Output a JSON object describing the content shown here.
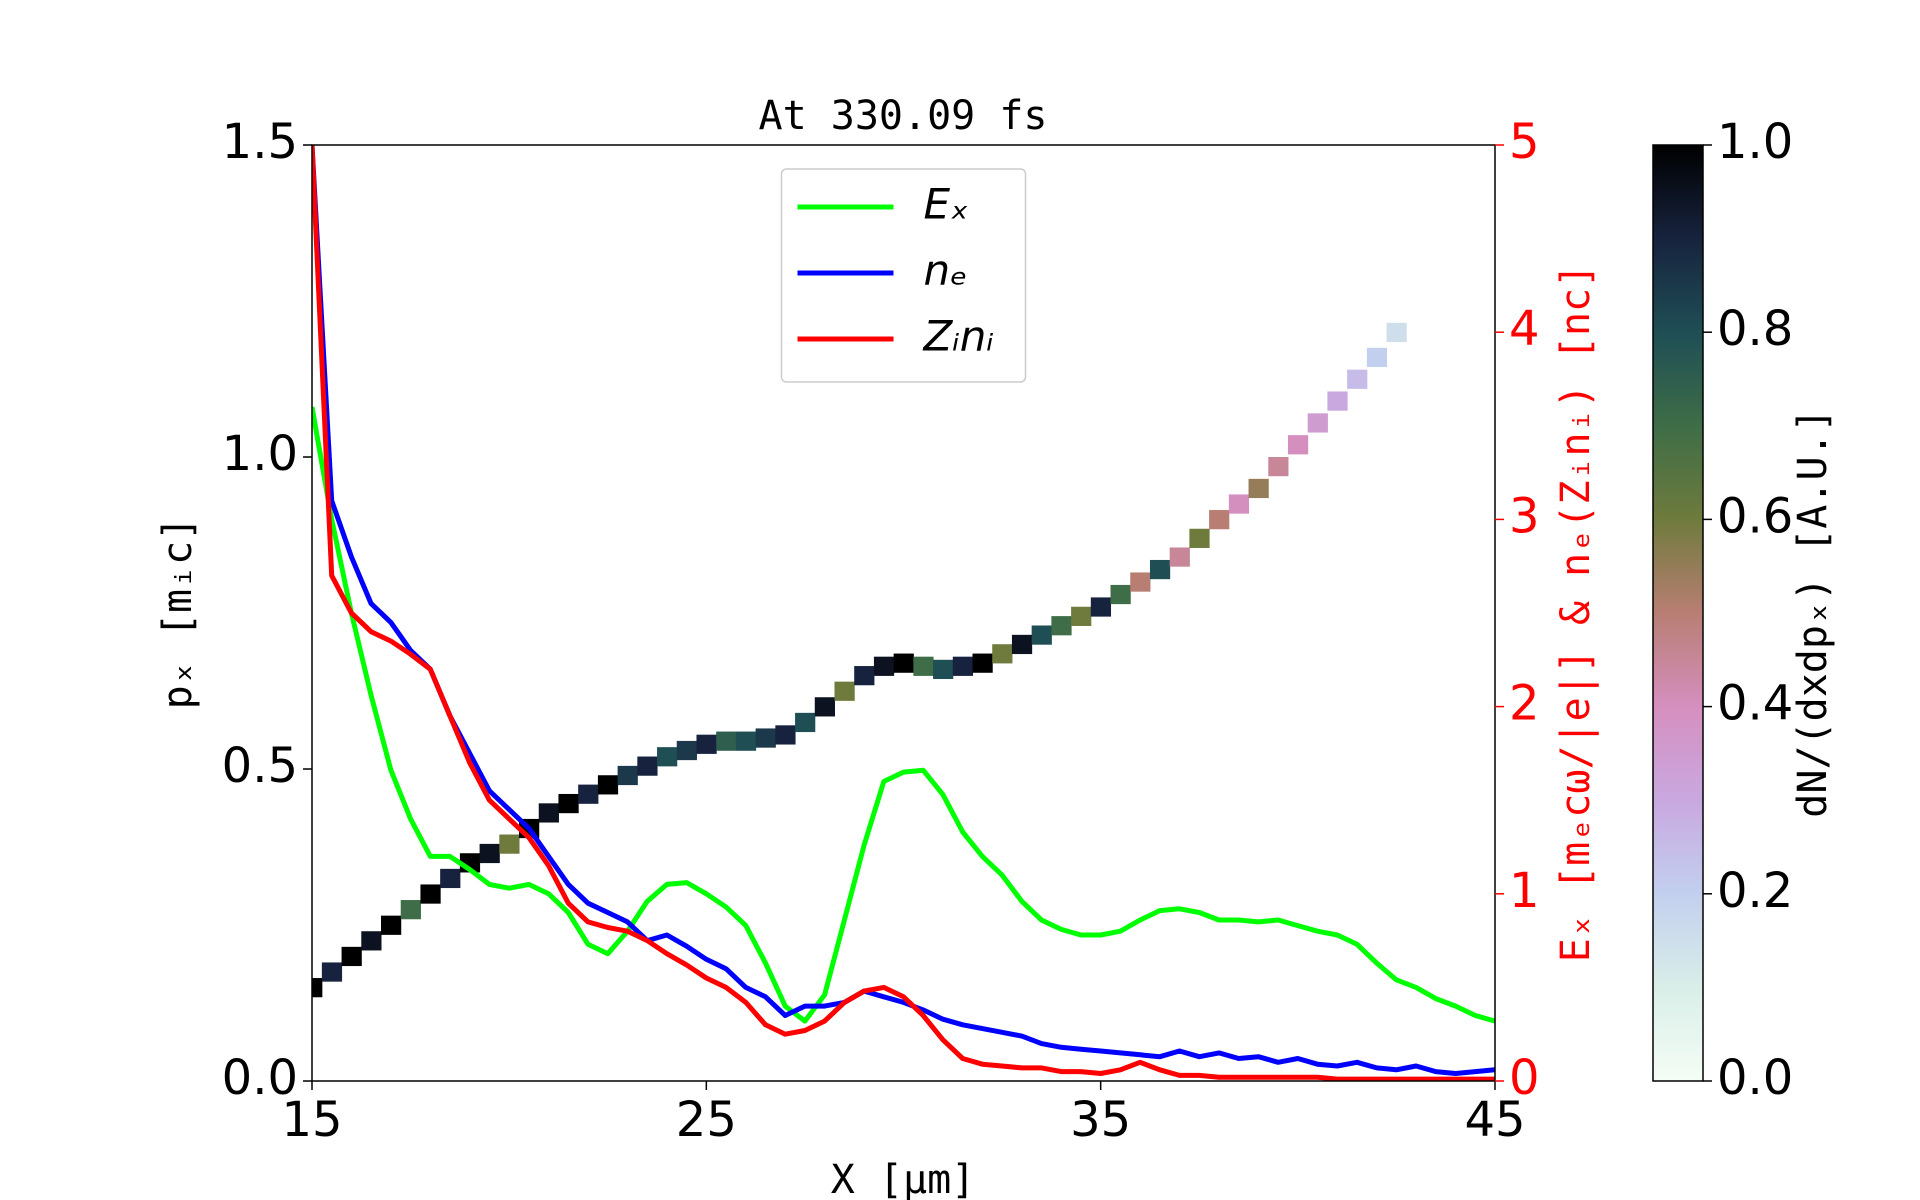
{
  "chart_data": {
    "type": "line",
    "title": "At 330.09 fs",
    "xlabel": "X [μm]",
    "ylabel": "pₓ [mᵢc]",
    "y2label": "Eₓ [mₑcω/|e|] & nₑ(Zᵢnᵢ) [nc]",
    "xlim": [
      15,
      45
    ],
    "xticks": [
      15,
      25,
      35,
      45
    ],
    "ylim": [
      0,
      1.5
    ],
    "yticks": [
      {
        "value": 0,
        "label": "0.0"
      },
      {
        "value": 0.5,
        "label": "0.5"
      },
      {
        "value": 1.0,
        "label": "1.0"
      },
      {
        "value": 1.5,
        "label": "1.5"
      }
    ],
    "y2lim": [
      0,
      5
    ],
    "y2ticks": [
      0,
      1,
      2,
      3,
      4,
      5
    ],
    "y2color": "#ff0000",
    "legend": "upper center",
    "x": [
      15,
      15.5,
      16,
      16.5,
      17,
      17.5,
      18,
      18.5,
      19,
      19.5,
      20,
      20.5,
      21,
      21.5,
      22,
      22.5,
      23,
      23.5,
      24,
      24.5,
      25,
      25.5,
      26,
      26.5,
      27,
      27.5,
      28,
      28.5,
      29,
      29.5,
      30,
      30.5,
      31,
      31.5,
      32,
      32.5,
      33,
      33.5,
      34,
      34.5,
      35,
      35.5,
      36,
      36.5,
      37,
      37.5,
      38,
      38.5,
      39,
      39.5,
      40,
      40.5,
      41,
      41.5,
      42,
      42.5,
      43,
      43.5,
      44,
      44.5,
      45
    ],
    "series": [
      {
        "name": "Eₓ",
        "color": "#00ff00",
        "axis": "y2",
        "values": [
          3.6,
          3.0,
          2.5,
          2.06,
          1.66,
          1.4,
          1.2,
          1.2,
          1.13,
          1.05,
          1.03,
          1.05,
          1.0,
          0.9,
          0.73,
          0.68,
          0.8,
          0.96,
          1.05,
          1.06,
          1.0,
          0.93,
          0.83,
          0.63,
          0.4,
          0.32,
          0.46,
          0.86,
          1.26,
          1.6,
          1.65,
          1.66,
          1.53,
          1.33,
          1.2,
          1.1,
          0.96,
          0.86,
          0.81,
          0.78,
          0.78,
          0.8,
          0.86,
          0.91,
          0.92,
          0.9,
          0.86,
          0.86,
          0.85,
          0.86,
          0.83,
          0.8,
          0.78,
          0.73,
          0.63,
          0.54,
          0.5,
          0.44,
          0.4,
          0.35,
          0.32
        ]
      },
      {
        "name": "nₑ",
        "color": "#0000ff",
        "axis": "y2",
        "values": [
          5,
          3.1,
          2.8,
          2.55,
          2.45,
          2.3,
          2.2,
          1.95,
          1.75,
          1.55,
          1.45,
          1.35,
          1.2,
          1.05,
          0.95,
          0.9,
          0.85,
          0.75,
          0.78,
          0.72,
          0.65,
          0.6,
          0.5,
          0.45,
          0.35,
          0.4,
          0.4,
          0.42,
          0.48,
          0.45,
          0.42,
          0.38,
          0.33,
          0.3,
          0.28,
          0.26,
          0.24,
          0.2,
          0.18,
          0.17,
          0.16,
          0.15,
          0.14,
          0.13,
          0.16,
          0.13,
          0.15,
          0.12,
          0.13,
          0.1,
          0.12,
          0.09,
          0.08,
          0.1,
          0.07,
          0.06,
          0.08,
          0.05,
          0.04,
          0.05,
          0.06
        ]
      },
      {
        "name": "Zᵢnᵢ",
        "color": "#ff0000",
        "axis": "y2",
        "values": [
          5,
          2.7,
          2.5,
          2.4,
          2.35,
          2.28,
          2.2,
          1.95,
          1.7,
          1.5,
          1.4,
          1.3,
          1.15,
          0.95,
          0.85,
          0.82,
          0.8,
          0.75,
          0.68,
          0.62,
          0.55,
          0.5,
          0.42,
          0.3,
          0.25,
          0.27,
          0.32,
          0.42,
          0.48,
          0.5,
          0.45,
          0.35,
          0.22,
          0.12,
          0.09,
          0.08,
          0.07,
          0.07,
          0.05,
          0.05,
          0.04,
          0.06,
          0.1,
          0.06,
          0.03,
          0.03,
          0.02,
          0.02,
          0.02,
          0.02,
          0.02,
          0.02,
          0.01,
          0.01,
          0.01,
          0.01,
          0.01,
          0.01,
          0.01,
          0.01,
          0.01
        ]
      }
    ],
    "heatmap": {
      "x": [
        15,
        15.5,
        16,
        16.5,
        17,
        17.5,
        18,
        18.5,
        19,
        19.5,
        20,
        20.5,
        21,
        21.5,
        22,
        22.5,
        23,
        23.5,
        24,
        24.5,
        25,
        25.5,
        26,
        26.5,
        27,
        27.5,
        28,
        28.5,
        29,
        29.5,
        30,
        30.5,
        31,
        31.5,
        32,
        32.5,
        33,
        33.5,
        34,
        34.5,
        35,
        35.5,
        36,
        36.5,
        37,
        37.5,
        38,
        38.5,
        39,
        39.5,
        40,
        40.5,
        41,
        41.5,
        42,
        42.5
      ],
      "y": [
        0.15,
        0.175,
        0.2,
        0.225,
        0.25,
        0.275,
        0.3,
        0.325,
        0.35,
        0.365,
        0.38,
        0.405,
        0.43,
        0.445,
        0.46,
        0.475,
        0.49,
        0.505,
        0.52,
        0.53,
        0.54,
        0.545,
        0.545,
        0.55,
        0.555,
        0.575,
        0.6,
        0.625,
        0.65,
        0.665,
        0.67,
        0.665,
        0.66,
        0.665,
        0.67,
        0.685,
        0.7,
        0.715,
        0.73,
        0.745,
        0.76,
        0.78,
        0.8,
        0.82,
        0.84,
        0.87,
        0.9,
        0.925,
        0.95,
        0.985,
        1.02,
        1.055,
        1.09,
        1.125,
        1.16,
        1.2
      ],
      "values": [
        1,
        0.9,
        1,
        0.95,
        1,
        0.7,
        1,
        0.9,
        1,
        0.95,
        0.6,
        1,
        0.95,
        1,
        0.9,
        1,
        0.85,
        0.9,
        0.8,
        0.85,
        0.9,
        0.75,
        0.8,
        0.85,
        0.9,
        0.8,
        0.95,
        0.6,
        0.9,
        0.95,
        1,
        0.7,
        0.8,
        0.9,
        1,
        0.6,
        0.95,
        0.8,
        0.7,
        0.6,
        0.9,
        0.7,
        0.5,
        0.8,
        0.45,
        0.6,
        0.5,
        0.4,
        0.55,
        0.45,
        0.4,
        0.35,
        0.3,
        0.25,
        0.2,
        0.15
      ]
    },
    "colormap": [
      "#f5fdf6",
      "#d9eee8",
      "#c2cfee",
      "#c9a8e0",
      "#d58fbf",
      "#b87e73",
      "#6f7b3d",
      "#3e6d47",
      "#1f4e55",
      "#17233e",
      "#000000"
    ],
    "colorbar": {
      "label": "dN/(dxdpₓ) [A.U.]",
      "lim": [
        0,
        1
      ],
      "ticks": [
        {
          "value": 0,
          "label": "0.0"
        },
        {
          "value": 0.2,
          "label": "0.2"
        },
        {
          "value": 0.4,
          "label": "0.4"
        },
        {
          "value": 0.6,
          "label": "0.6"
        },
        {
          "value": 0.8,
          "label": "0.8"
        },
        {
          "value": 1.0,
          "label": "1.0"
        }
      ]
    }
  }
}
